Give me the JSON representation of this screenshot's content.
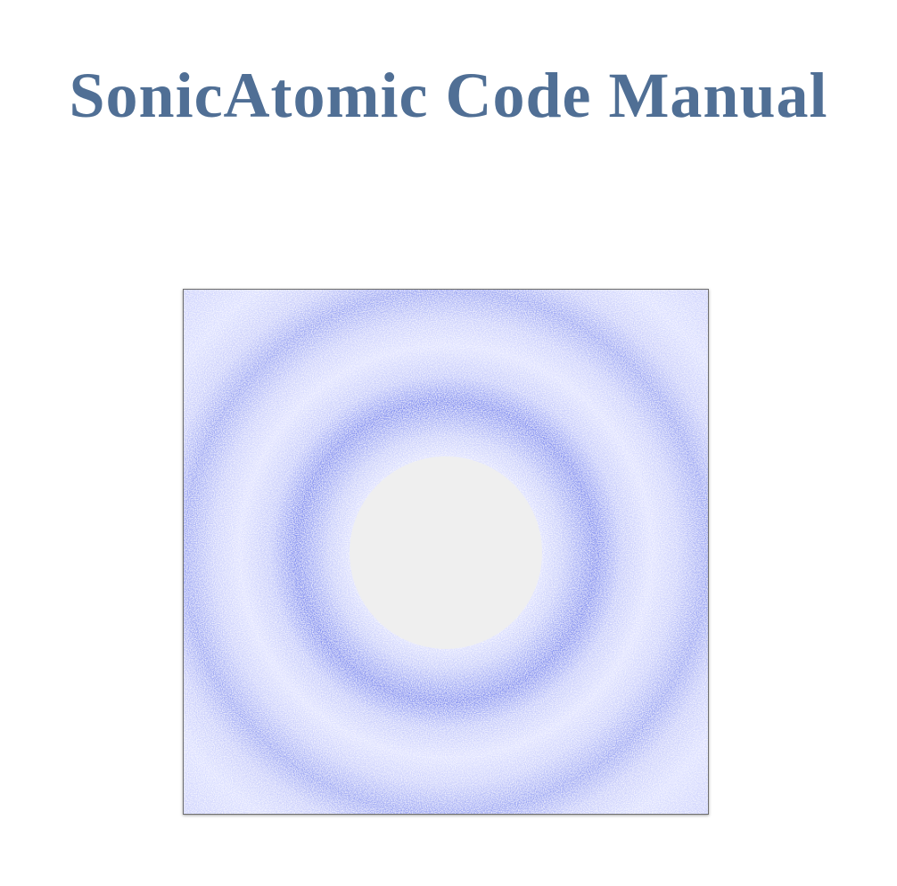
{
  "document": {
    "title": "SonicAtomic Code Manual"
  },
  "colors": {
    "title": "#506F95",
    "wave": "#4a5ee8",
    "wave_light": "#dfe2ff",
    "center_disk": "#efefef",
    "frame_border": "#6f6f6f"
  },
  "figure": {
    "icon": "acoustic-wave-simulation-image"
  }
}
